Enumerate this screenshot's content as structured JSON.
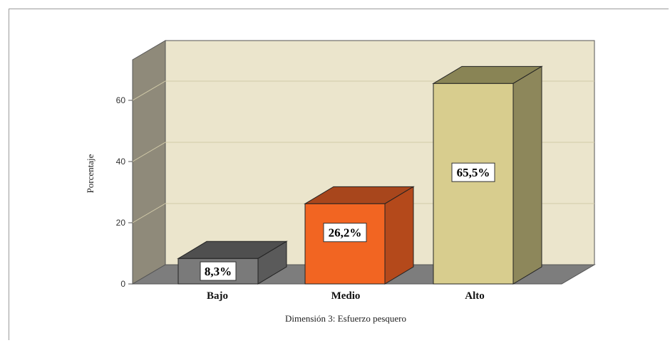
{
  "chart_data": {
    "type": "bar",
    "categories": [
      "Bajo",
      "Medio",
      "Alto"
    ],
    "values": [
      8.3,
      26.2,
      65.5
    ],
    "data_labels": [
      "8,3%",
      "26,2%",
      "65,5%"
    ],
    "xlabel": "Dimensión 3: Esfuerzo pesquero",
    "ylabel": "Porcentaje",
    "ylim": [
      0,
      70
    ],
    "yticks": [
      "0",
      "20",
      "40",
      "60"
    ],
    "grid": true,
    "style": "3d",
    "colors": [
      {
        "front": "#7a7a7a",
        "top": "#4f4f4f",
        "side": "#5a5a5a"
      },
      {
        "front": "#f26522",
        "top": "#a8461c",
        "side": "#b4491b"
      },
      {
        "front": "#d8cd8e",
        "top": "#898455",
        "side": "#8d875b"
      }
    ],
    "wall_color": "#ebe5cc",
    "side_wall_color": "#8f8a7a",
    "floor_color": "#7d7d7d"
  }
}
